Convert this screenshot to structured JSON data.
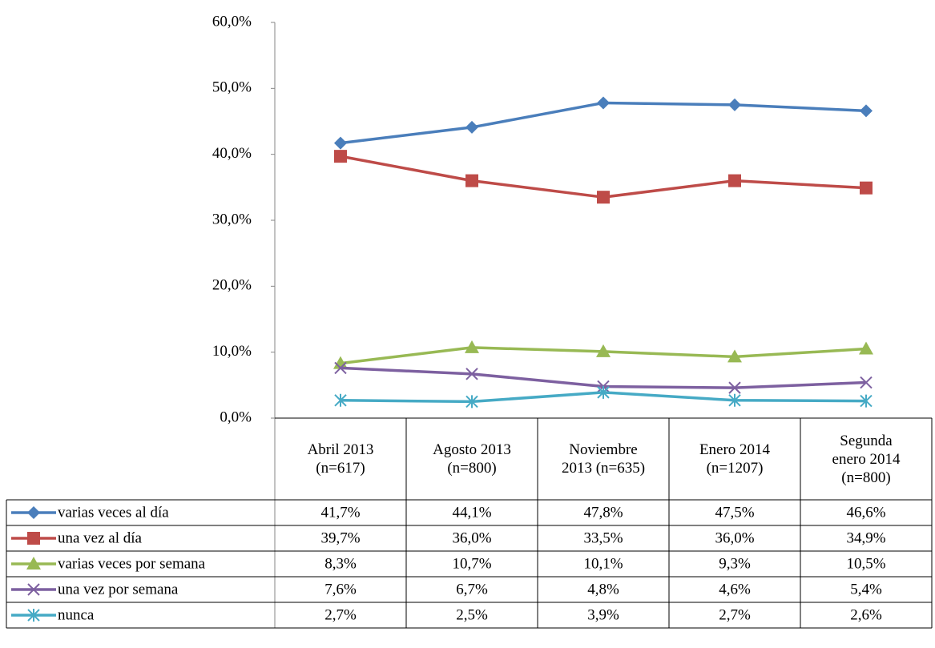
{
  "chart_data": {
    "type": "line",
    "categories": [
      "Abril 2013\n(n=617)",
      "Agosto 2013\n(n=800)",
      "Noviembre\n2013 (n=635)",
      "Enero 2014\n(n=1207)",
      "Segunda\nenero 2014\n(n=800)"
    ],
    "series": [
      {
        "name": "varias veces al día",
        "color": "#4a7ebb",
        "marker": "diamond",
        "values": [
          41.7,
          44.1,
          47.8,
          47.5,
          46.6
        ],
        "value_labels": [
          "41,7%",
          "44,1%",
          "47,8%",
          "47,5%",
          "46,6%"
        ]
      },
      {
        "name": "una vez al día",
        "color": "#be4b48",
        "marker": "square",
        "values": [
          39.7,
          36.0,
          33.5,
          36.0,
          34.9
        ],
        "value_labels": [
          "39,7%",
          "36,0%",
          "33,5%",
          "36,0%",
          "34,9%"
        ]
      },
      {
        "name": "varias veces por semana",
        "color": "#98b954",
        "marker": "triangle",
        "values": [
          8.3,
          10.7,
          10.1,
          9.3,
          10.5
        ],
        "value_labels": [
          "8,3%",
          "10,7%",
          "10,1%",
          "9,3%",
          "10,5%"
        ]
      },
      {
        "name": "una vez por semana",
        "color": "#7d60a0",
        "marker": "x",
        "values": [
          7.6,
          6.7,
          4.8,
          4.6,
          5.4
        ],
        "value_labels": [
          "7,6%",
          "6,7%",
          "4,8%",
          "4,6%",
          "5,4%"
        ]
      },
      {
        "name": "nunca",
        "color": "#46aac5",
        "marker": "asterisk",
        "values": [
          2.7,
          2.5,
          3.9,
          2.7,
          2.6
        ],
        "value_labels": [
          "2,7%",
          "2,5%",
          "3,9%",
          "2,7%",
          "2,6%"
        ]
      }
    ],
    "ylim": [
      0,
      60
    ],
    "yticks": [
      {
        "value": 0,
        "label": "0,0%"
      },
      {
        "value": 10,
        "label": "10,0%"
      },
      {
        "value": 20,
        "label": "20,0%"
      },
      {
        "value": 30,
        "label": "30,0%"
      },
      {
        "value": 40,
        "label": "40,0%"
      },
      {
        "value": 50,
        "label": "50,0%"
      },
      {
        "value": 60,
        "label": "60,0%"
      }
    ],
    "grid": false,
    "data_table": true
  }
}
